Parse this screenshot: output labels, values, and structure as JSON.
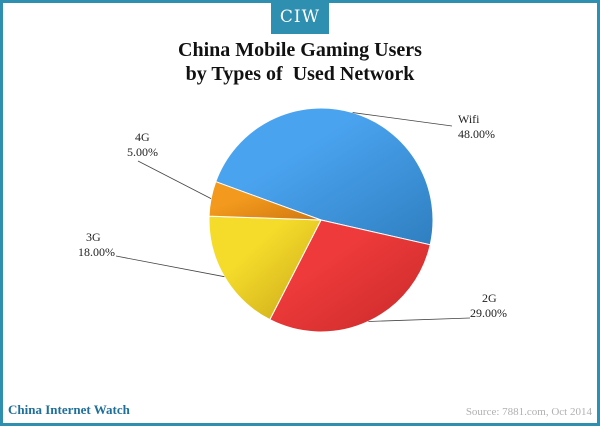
{
  "header": {
    "badge": "CIW"
  },
  "chart_data": {
    "type": "pie",
    "title_lines": [
      "China Mobile Gaming Users",
      "by Types of  Used Network"
    ],
    "slices": [
      {
        "name": "Wifi",
        "value": 48.0,
        "label": "48.00%",
        "color": "#4aa3ef",
        "dark": "#2f7fc0"
      },
      {
        "name": "2G",
        "value": 29.0,
        "label": "29.00%",
        "color": "#ee3a3a",
        "dark": "#c92a2a"
      },
      {
        "name": "3G",
        "value": 18.0,
        "label": "18.00%",
        "color": "#f5dc2a",
        "dark": "#c9a61a"
      },
      {
        "name": "4G",
        "value": 5.0,
        "label": "5.00%",
        "color": "#f39a1e",
        "dark": "#d07810"
      }
    ]
  },
  "footer": {
    "brand": "China Internet Watch",
    "source": "Source: 7881.com, Oct 2014"
  }
}
